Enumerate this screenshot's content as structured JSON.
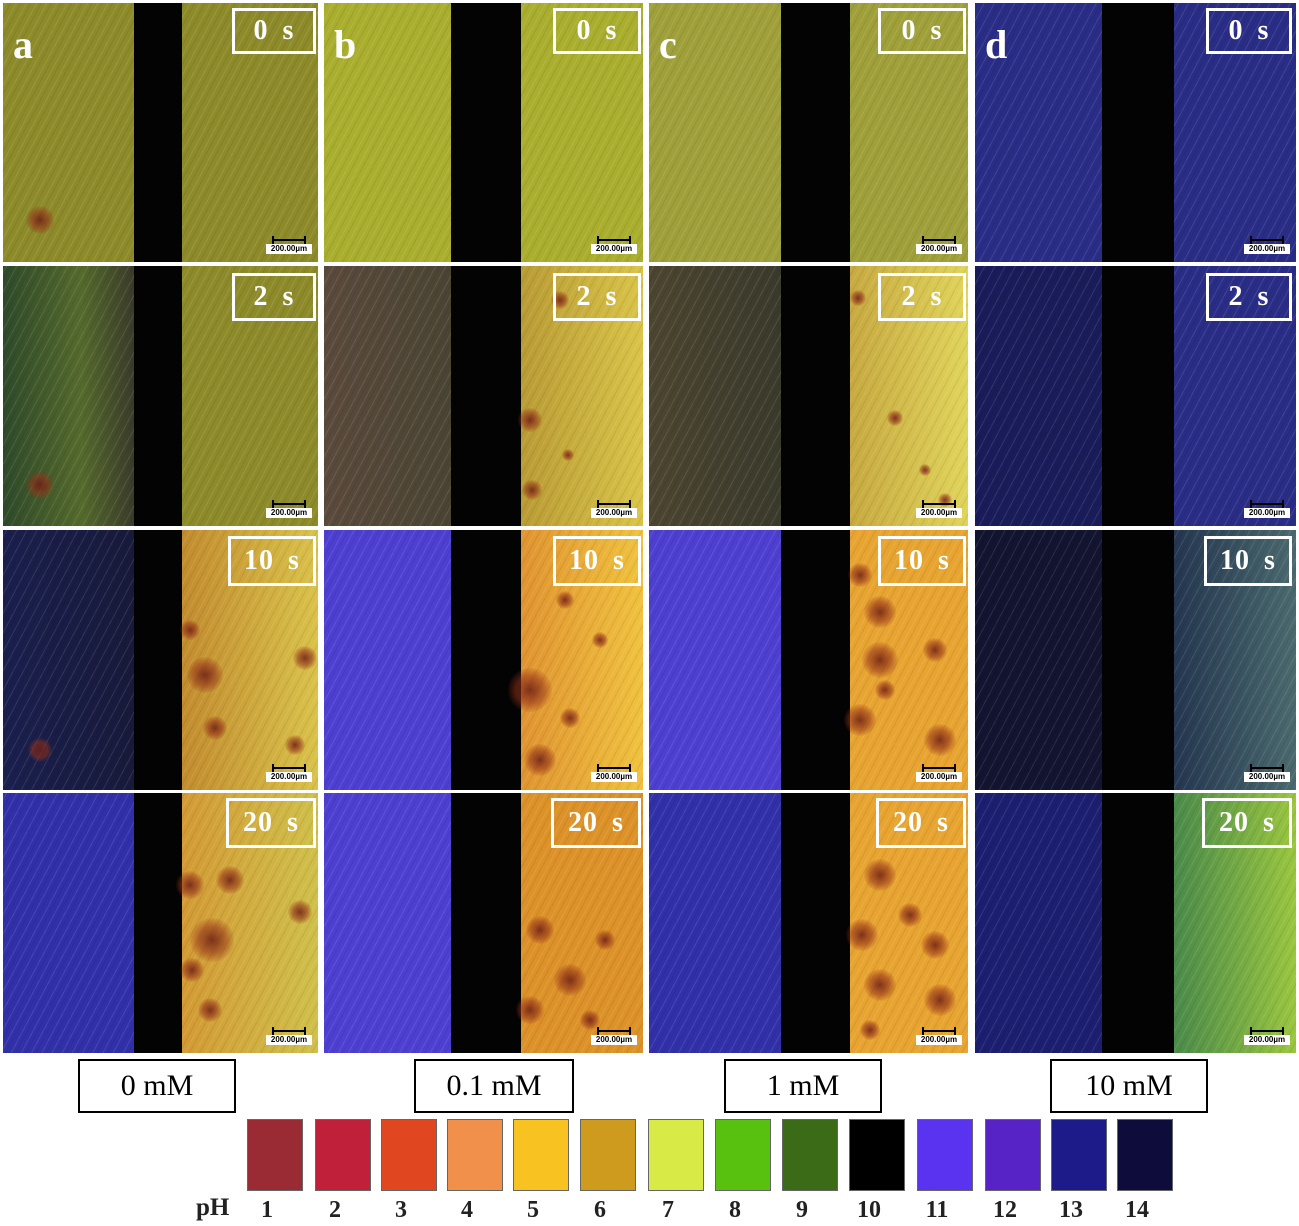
{
  "columns": [
    {
      "letter": "a",
      "concentration": "0 mM"
    },
    {
      "letter": "b",
      "concentration": "0.1 mM"
    },
    {
      "letter": "c",
      "concentration": "1 mM"
    },
    {
      "letter": "d",
      "concentration": "10 mM"
    }
  ],
  "time_labels": [
    "0 s",
    "2 s",
    "10 s",
    "20 s"
  ],
  "scale_bar_label": "200.00µm",
  "legend": {
    "label": "pH",
    "items": [
      {
        "ph": "1",
        "color": "#9a2b35"
      },
      {
        "ph": "2",
        "color": "#c0203a"
      },
      {
        "ph": "3",
        "color": "#e0461f"
      },
      {
        "ph": "4",
        "color": "#f0904a"
      },
      {
        "ph": "5",
        "color": "#f8c320"
      },
      {
        "ph": "6",
        "color": "#cf9b1e"
      },
      {
        "ph": "7",
        "color": "#d8ea45"
      },
      {
        "ph": "8",
        "color": "#58c10f"
      },
      {
        "ph": "9",
        "color": "#3c6b18"
      },
      {
        "ph": "10",
        "color": "#000000"
      },
      {
        "ph": "11",
        "color": "#5a33f0"
      },
      {
        "ph": "12",
        "color": "#5722c6"
      },
      {
        "ph": "13",
        "color": "#1d1a8a"
      },
      {
        "ph": "14",
        "color": "#0d0c3b"
      }
    ]
  }
}
